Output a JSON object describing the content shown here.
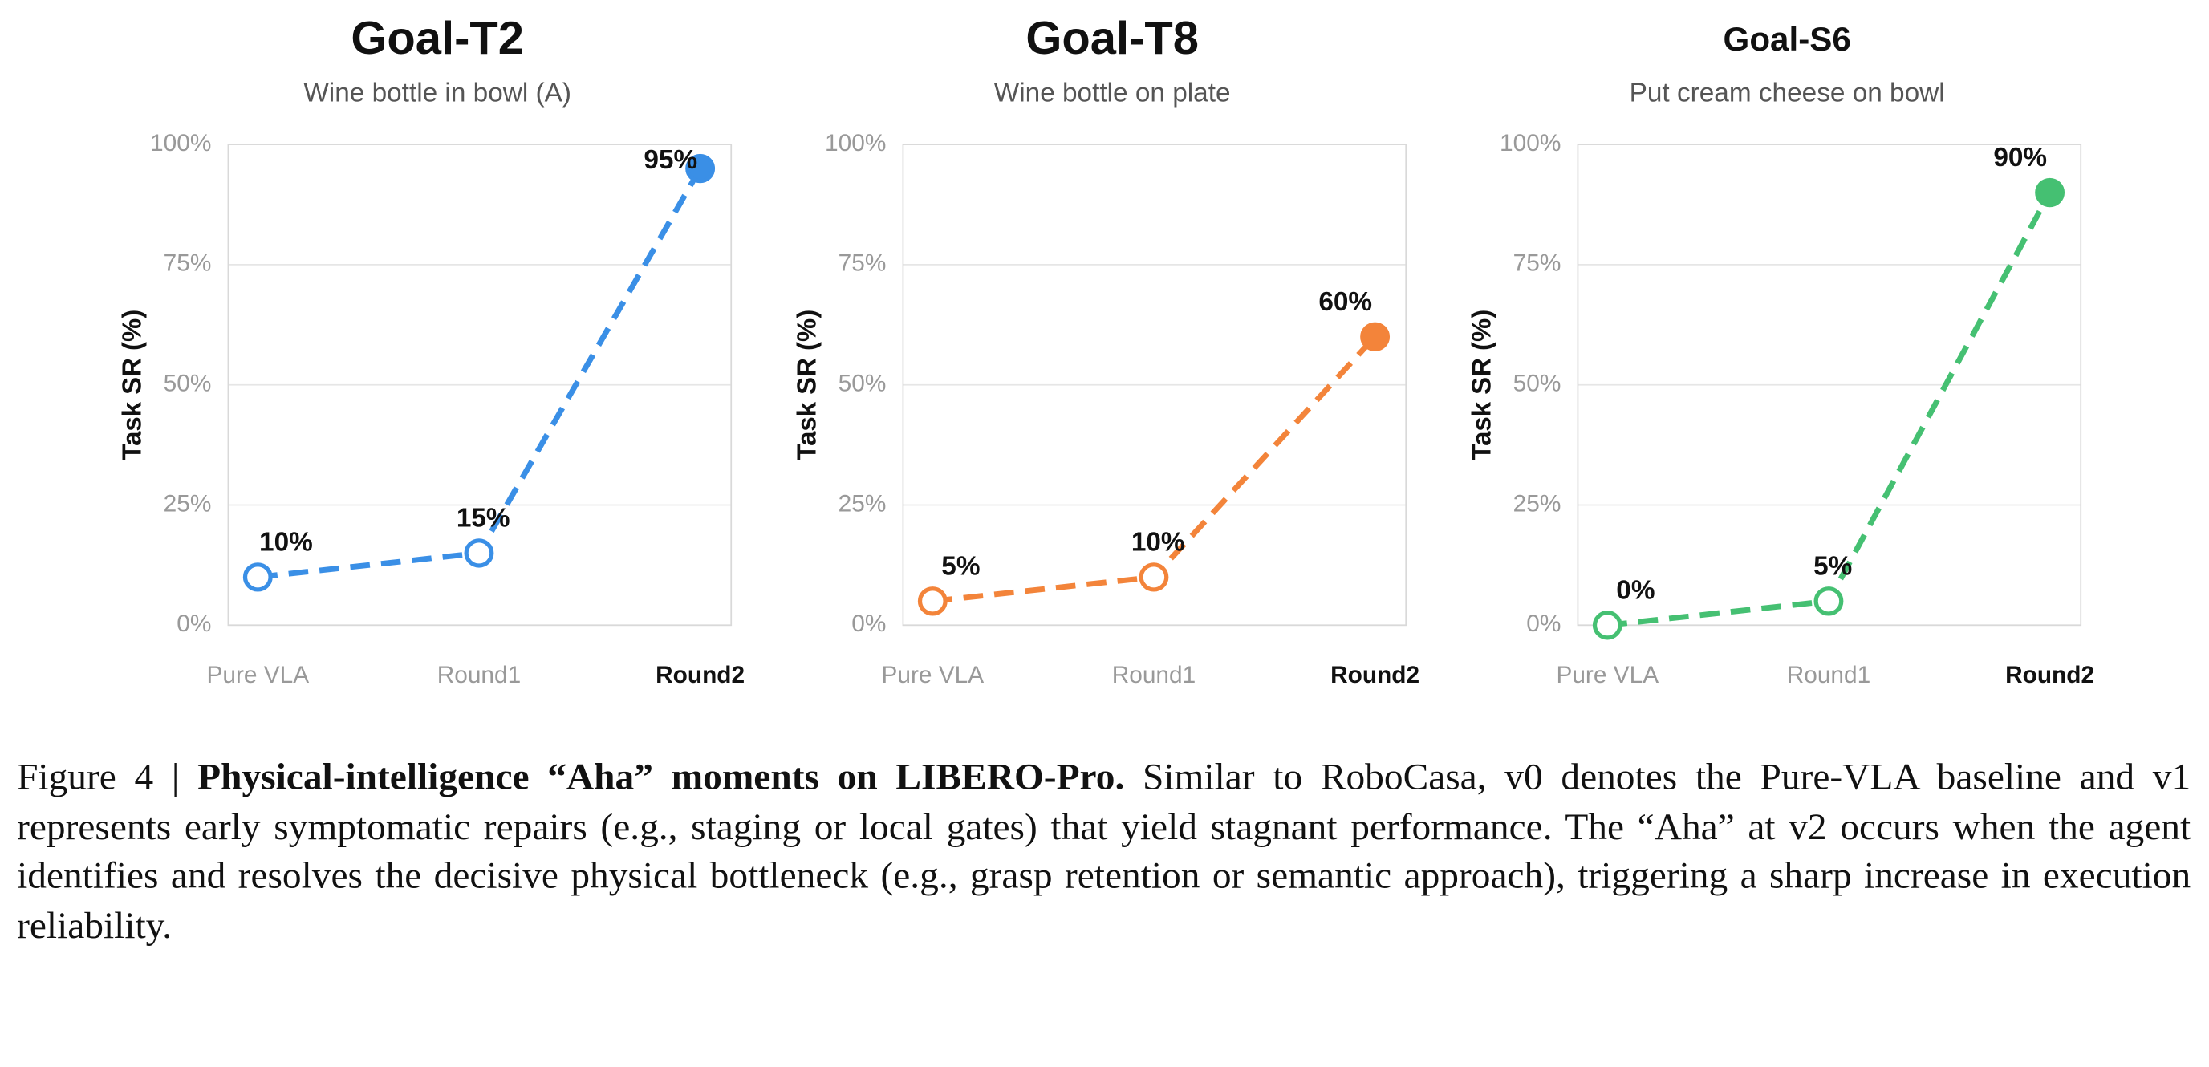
{
  "chart_data": [
    {
      "type": "line",
      "title": "Goal-T2",
      "subtitle": "Wine bottle in bowl (A)",
      "y_label": "Task SR (%)",
      "categories": [
        "Pure VLA",
        "Round1",
        "Round2"
      ],
      "values": [
        10,
        15,
        95
      ],
      "value_labels": [
        "10%",
        "15%",
        "95%"
      ],
      "color": "#3a8fe6",
      "ylim": [
        0,
        100
      ],
      "yticks": [
        {
          "value": 0,
          "label": "0%"
        },
        {
          "value": 25,
          "label": "25%"
        },
        {
          "value": 50,
          "label": "50%"
        },
        {
          "value": 75,
          "label": "75%"
        },
        {
          "value": 100,
          "label": "100%"
        }
      ],
      "grid": true
    },
    {
      "type": "line",
      "title": "Goal-T8",
      "subtitle": "Wine bottle on plate",
      "y_label": "Task SR (%)",
      "categories": [
        "Pure VLA",
        "Round1",
        "Round2"
      ],
      "values": [
        5,
        10,
        60
      ],
      "value_labels": [
        "5%",
        "10%",
        "60%"
      ],
      "color": "#f3843a",
      "ylim": [
        0,
        100
      ],
      "yticks": [
        {
          "value": 0,
          "label": "0%"
        },
        {
          "value": 25,
          "label": "25%"
        },
        {
          "value": 50,
          "label": "50%"
        },
        {
          "value": 75,
          "label": "75%"
        },
        {
          "value": 100,
          "label": "100%"
        }
      ],
      "grid": true
    },
    {
      "type": "line",
      "title": "Goal-S6",
      "subtitle": "Put cream cheese on bowl",
      "y_label": "Task SR (%)",
      "categories": [
        "Pure VLA",
        "Round1",
        "Round2"
      ],
      "values": [
        0,
        5,
        90
      ],
      "value_labels": [
        "0%",
        "5%",
        "90%"
      ],
      "color": "#45c072",
      "ylim": [
        0,
        100
      ],
      "yticks": [
        {
          "value": 0,
          "label": "0%"
        },
        {
          "value": 25,
          "label": "25%"
        },
        {
          "value": 50,
          "label": "50%"
        },
        {
          "value": 75,
          "label": "75%"
        },
        {
          "value": 100,
          "label": "100%"
        }
      ],
      "grid": true
    }
  ],
  "caption": {
    "label": "Figure 4 |",
    "heading": "Physical-intelligence “Aha” moments on LIBERO-Pro.",
    "text": "Similar to RoboCasa, v0 denotes the Pure-VLA baseline and v1 represents early symptomatic repairs (e.g., staging or local gates) that yield stagnant performance. The “Aha” at v2 occurs when the agent identifies and resolves the decisive physical bottleneck (e.g., grasp retention or semantic approach), triggering a sharp increase in execution reliability."
  }
}
